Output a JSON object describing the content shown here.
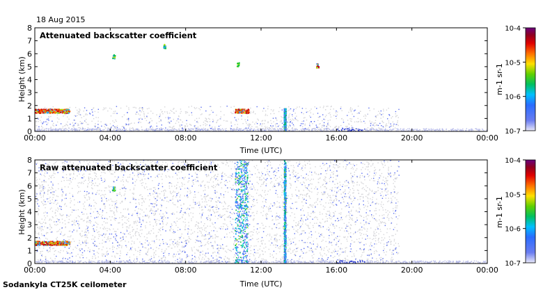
{
  "date_label": "18 Aug 2015",
  "footer_label": "Sodankyla CT25K ceilometer",
  "colorbar_unit_label": "m-1 sr-1",
  "chart_data": [
    {
      "type": "heatmap",
      "title": "Attenuated backscatter coefficient",
      "xlabel": "Time (UTC)",
      "ylabel": "Height (km)",
      "x_ticks": [
        "00:00",
        "04:00",
        "08:00",
        "12:00",
        "16:00",
        "20:00",
        "00:00"
      ],
      "y_ticks": [
        "0",
        "1",
        "2",
        "3",
        "4",
        "5",
        "6",
        "7",
        "8"
      ],
      "xlim_hours": [
        0,
        24
      ],
      "ylim_km": [
        0,
        8
      ],
      "colorbar": {
        "scale": "log",
        "ticks": [
          "10-7",
          "10-6",
          "10-5",
          "10-4"
        ],
        "unit": "m-1 sr-1",
        "colors": [
          "#e8e8f8",
          "#4f6cf0",
          "#2aa0ff",
          "#00d0d0",
          "#00c040",
          "#b0e000",
          "#ffd000",
          "#ff6000",
          "#d00000",
          "#800020",
          "#6a0080"
        ]
      },
      "features": [
        {
          "name": "cloud layer",
          "start_hour": 0.0,
          "end_hour": 1.8,
          "height_km": 1.6,
          "level": "high"
        },
        {
          "name": "boundary layer cloud",
          "start_hour": 10.6,
          "end_hour": 11.3,
          "height_km": 1.6,
          "level": "high"
        },
        {
          "name": "isolated cloud",
          "start_hour": 4.1,
          "end_hour": 4.2,
          "height_km": 5.8,
          "level": "medium"
        },
        {
          "name": "isolated cloud",
          "start_hour": 6.8,
          "end_hour": 6.9,
          "height_km": 6.6,
          "level": "medium"
        },
        {
          "name": "isolated cloud",
          "start_hour": 10.7,
          "end_hour": 10.8,
          "height_km": 5.2,
          "level": "medium"
        },
        {
          "name": "isolated cloud",
          "start_hour": 14.9,
          "end_hour": 15.0,
          "height_km": 5.1,
          "level": "high"
        },
        {
          "name": "precipitation column",
          "start_hour": 13.2,
          "end_hour": 13.3,
          "height_km": 1.8,
          "level": "medium"
        }
      ]
    },
    {
      "type": "heatmap",
      "title": "Raw attenuated backscatter coefficient",
      "xlabel": "Time (UTC)",
      "ylabel": "Height (km)",
      "x_ticks": [
        "00:00",
        "04:00",
        "08:00",
        "12:00",
        "16:00",
        "20:00",
        "00:00"
      ],
      "y_ticks": [
        "0",
        "1",
        "2",
        "3",
        "4",
        "5",
        "6",
        "7",
        "8"
      ],
      "xlim_hours": [
        0,
        24
      ],
      "ylim_km": [
        0,
        8
      ],
      "colorbar": {
        "scale": "log",
        "ticks": [
          "10-7",
          "10-6",
          "10-5",
          "10-4"
        ],
        "unit": "m-1 sr-1",
        "colors": [
          "#e8e8f8",
          "#4f6cf0",
          "#2aa0ff",
          "#00d0d0",
          "#00c040",
          "#b0e000",
          "#ffd000",
          "#ff6000",
          "#d00000",
          "#800020",
          "#6a0080"
        ]
      },
      "features": [
        {
          "name": "cloud layer",
          "start_hour": 0.0,
          "end_hour": 1.8,
          "height_km": 1.6,
          "level": "high"
        },
        {
          "name": "noise column",
          "start_hour": 10.6,
          "end_hour": 11.3,
          "height_km": 8.0,
          "level": "medium"
        },
        {
          "name": "noise column",
          "start_hour": 13.2,
          "end_hour": 13.3,
          "height_km": 8.0,
          "level": "medium"
        },
        {
          "name": "isolated cloud",
          "start_hour": 4.1,
          "end_hour": 4.2,
          "height_km": 5.8,
          "level": "medium"
        }
      ]
    }
  ]
}
